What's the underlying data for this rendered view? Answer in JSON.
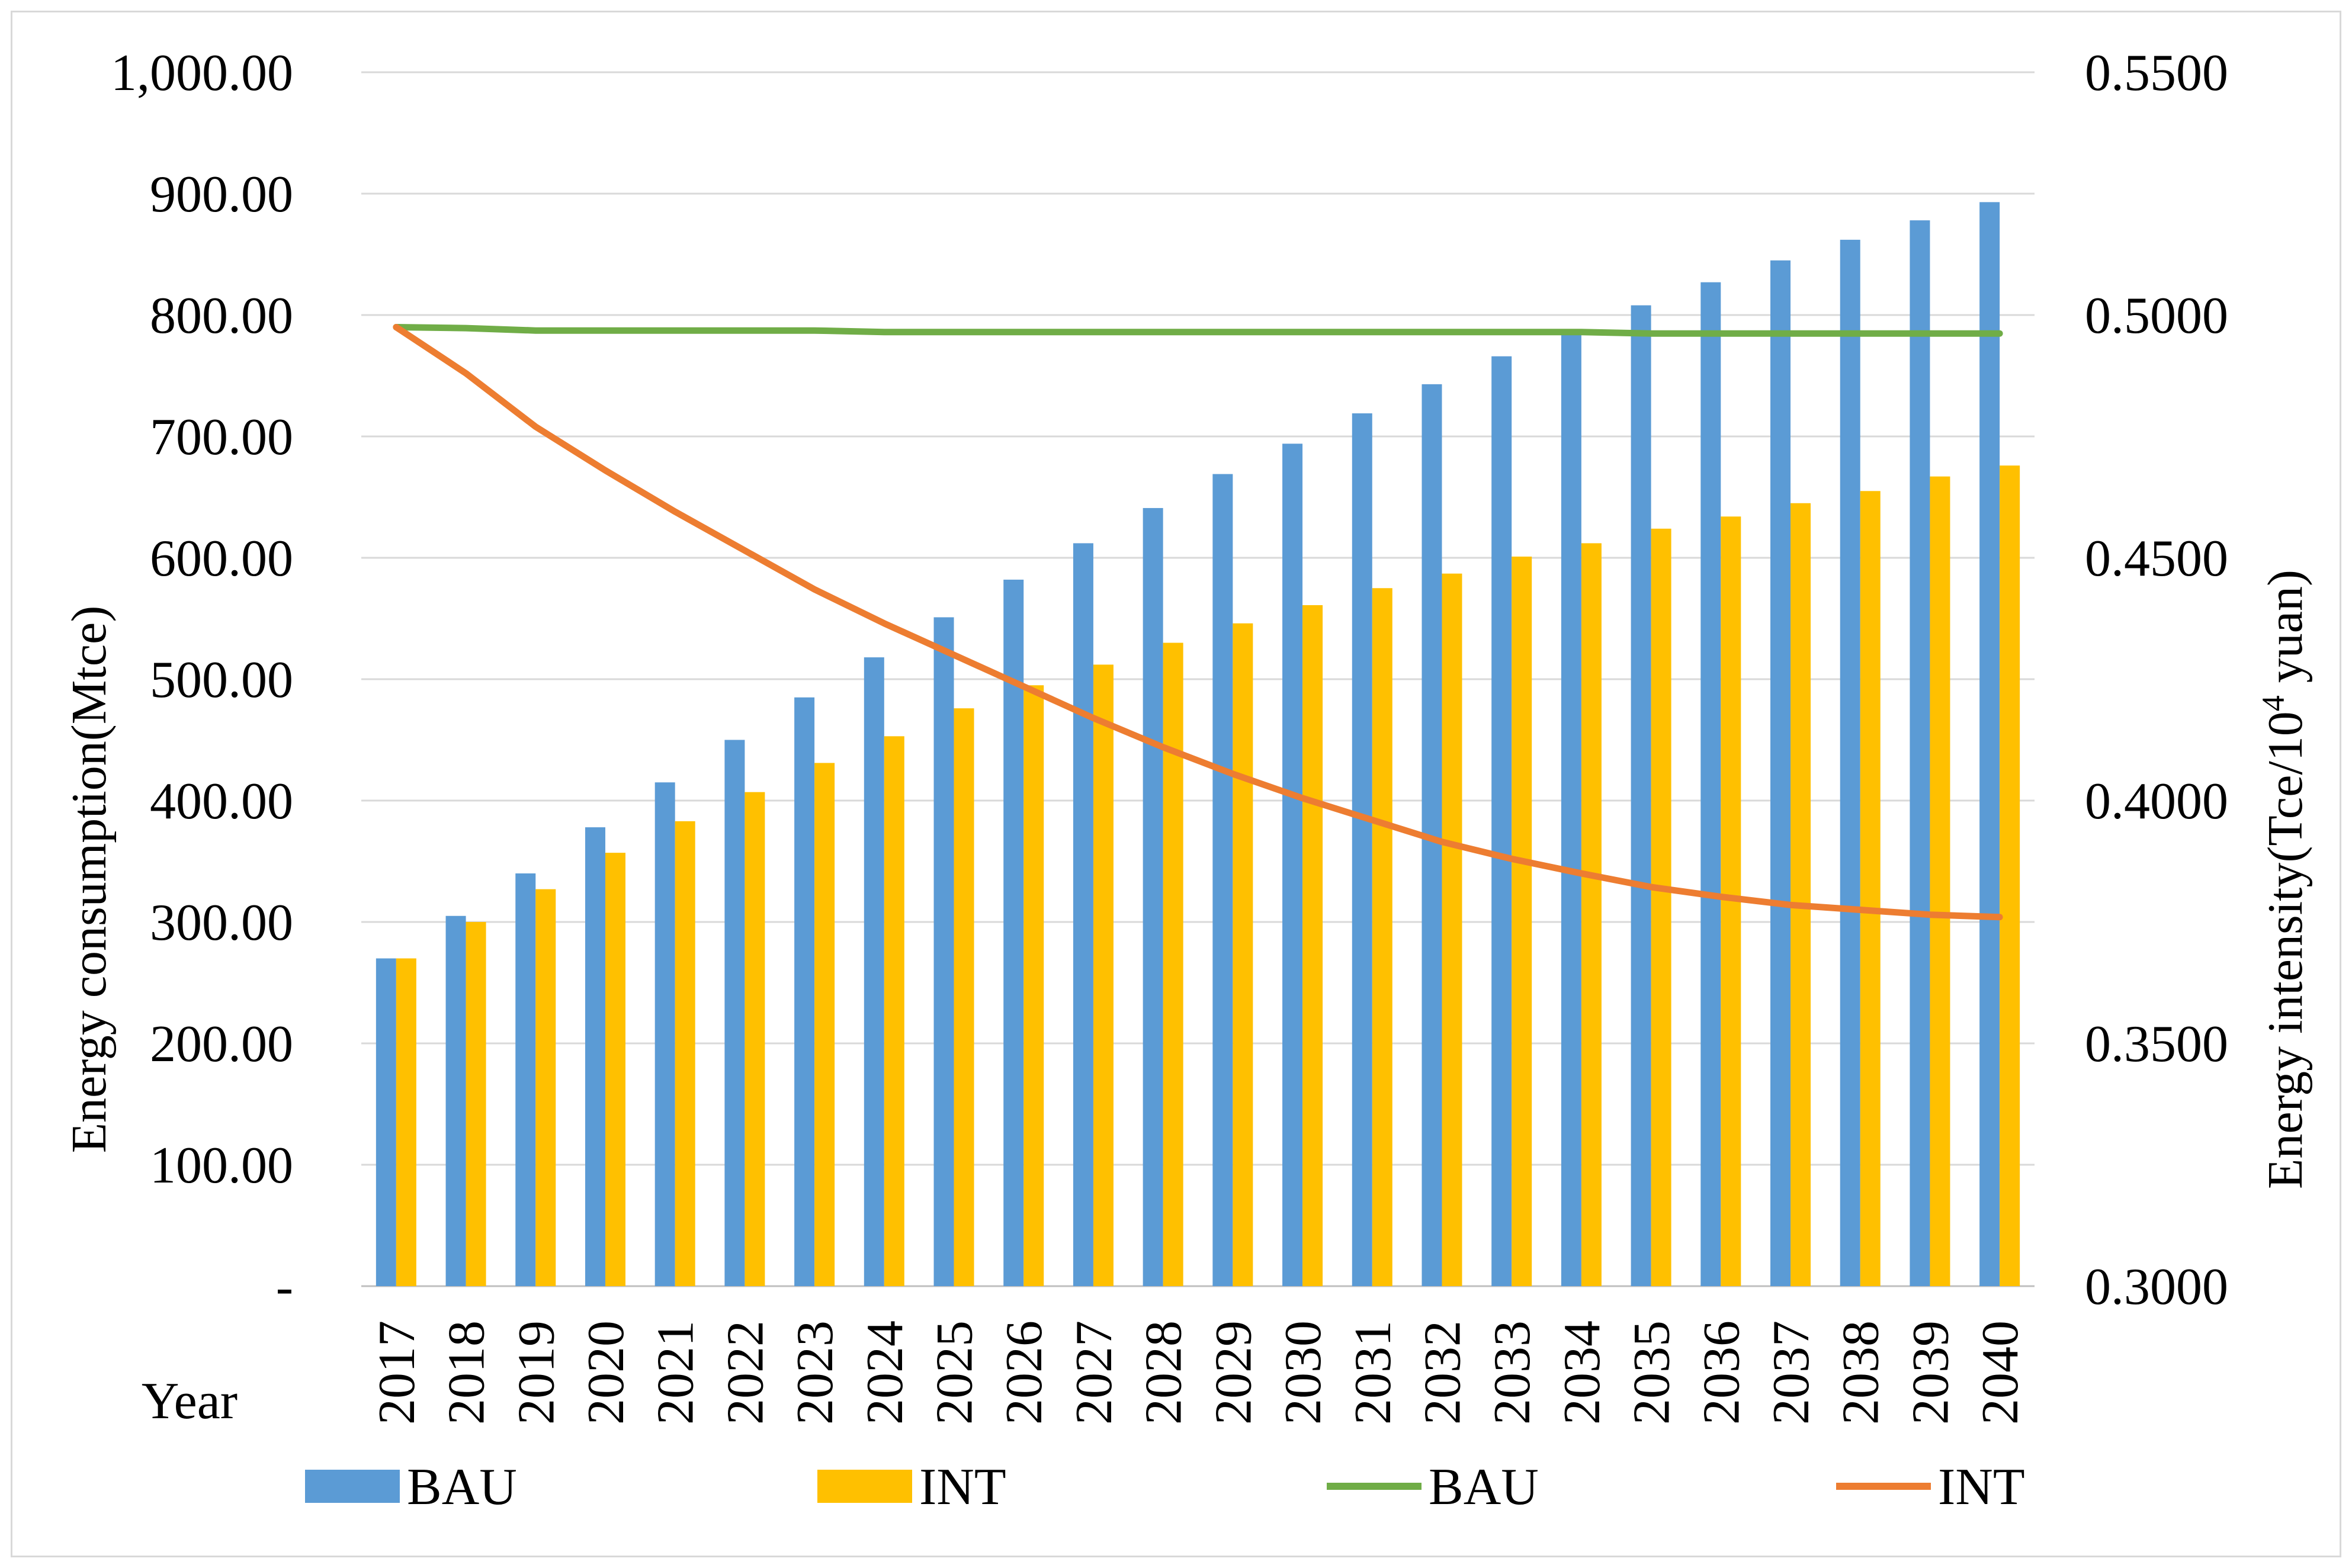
{
  "chart_data": {
    "type": "bar",
    "categories": [
      "2017",
      "2018",
      "2019",
      "2020",
      "2021",
      "2022",
      "2023",
      "2024",
      "2025",
      "2026",
      "2027",
      "2028",
      "2029",
      "2030",
      "2031",
      "2032",
      "2033",
      "2034",
      "2035",
      "2036",
      "2037",
      "2038",
      "2039",
      "2040"
    ],
    "x_axis_title": "Year",
    "y_left": {
      "label": "Energy consumption(Mtce)",
      "min": 0,
      "max": 1000,
      "step": 100,
      "tick_labels": [
        "-",
        "100.00",
        "200.00",
        "300.00",
        "400.00",
        "500.00",
        "600.00",
        "700.00",
        "800.00",
        "900.00",
        "1,000.00"
      ]
    },
    "y_right": {
      "label_prefix": "Energy intensity(Tce/10",
      "label_sup": "4",
      "label_suffix": " yuan)",
      "min": 0.3,
      "max": 0.55,
      "step": 0.05,
      "tick_labels": [
        "0.3000",
        "0.3500",
        "0.4000",
        "0.4500",
        "0.5000",
        "0.5500"
      ]
    },
    "series": [
      {
        "name": "BAU",
        "kind": "bar",
        "axis": "left",
        "color": "#5b9bd5",
        "values": [
          270,
          305,
          340,
          378,
          415,
          450,
          485,
          518,
          551,
          582,
          612,
          641,
          669,
          694,
          719,
          743,
          766,
          787,
          808,
          827,
          845,
          862,
          878,
          893
        ]
      },
      {
        "name": "INT",
        "kind": "bar",
        "axis": "left",
        "color": "#ffc000",
        "values": [
          270,
          300,
          327,
          357,
          383,
          407,
          431,
          453,
          476,
          495,
          512,
          530,
          546,
          561,
          575,
          587,
          601,
          612,
          624,
          634,
          645,
          655,
          667,
          676
        ]
      },
      {
        "name": "BAU",
        "kind": "line",
        "axis": "right",
        "color": "#70ad47",
        "values": [
          0.4975,
          0.4973,
          0.4968,
          0.4968,
          0.4968,
          0.4968,
          0.4968,
          0.4965,
          0.4965,
          0.4965,
          0.4965,
          0.4965,
          0.4965,
          0.4965,
          0.4965,
          0.4965,
          0.4965,
          0.4965,
          0.4962,
          0.4962,
          0.4962,
          0.4962,
          0.4962,
          0.4962
        ]
      },
      {
        "name": "INT",
        "kind": "line",
        "axis": "right",
        "color": "#ed7d31",
        "values": [
          0.4975,
          0.488,
          0.477,
          0.468,
          0.4595,
          0.4515,
          0.4435,
          0.4365,
          0.43,
          0.4235,
          0.417,
          0.411,
          0.4055,
          0.4005,
          0.396,
          0.3915,
          0.388,
          0.385,
          0.3822,
          0.3802,
          0.3785,
          0.3775,
          0.3765,
          0.376
        ]
      }
    ],
    "legend": {
      "position": "bottom"
    }
  }
}
